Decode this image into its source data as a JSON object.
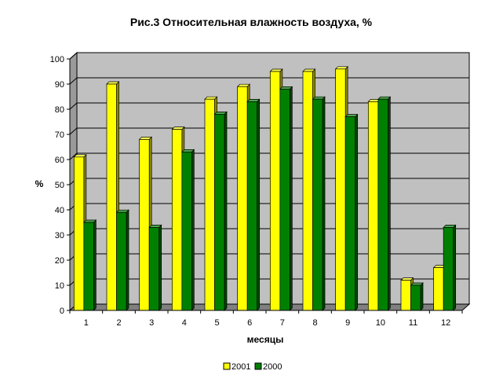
{
  "chart_data": {
    "type": "bar",
    "title": "Рис.3 Относительная влажность воздуха, %",
    "xlabel": "месяцы",
    "ylabel": "%",
    "categories": [
      "1",
      "2",
      "3",
      "4",
      "5",
      "6",
      "7",
      "8",
      "9",
      "10",
      "11",
      "12"
    ],
    "series": [
      {
        "name": "2001",
        "color": "#ffff00",
        "values": [
          61,
          90,
          68,
          72,
          84,
          89,
          95,
          95,
          96,
          83,
          12,
          17
        ]
      },
      {
        "name": "2000",
        "color": "#008000",
        "values": [
          35,
          39,
          33,
          63,
          78,
          83,
          88,
          84,
          77,
          84,
          10,
          33
        ]
      }
    ],
    "ylim": [
      0,
      100
    ],
    "ytick_step": 10,
    "grid": true,
    "legend_position": "bottom",
    "plot_background": "#c0c0c0",
    "style_3d": true
  }
}
